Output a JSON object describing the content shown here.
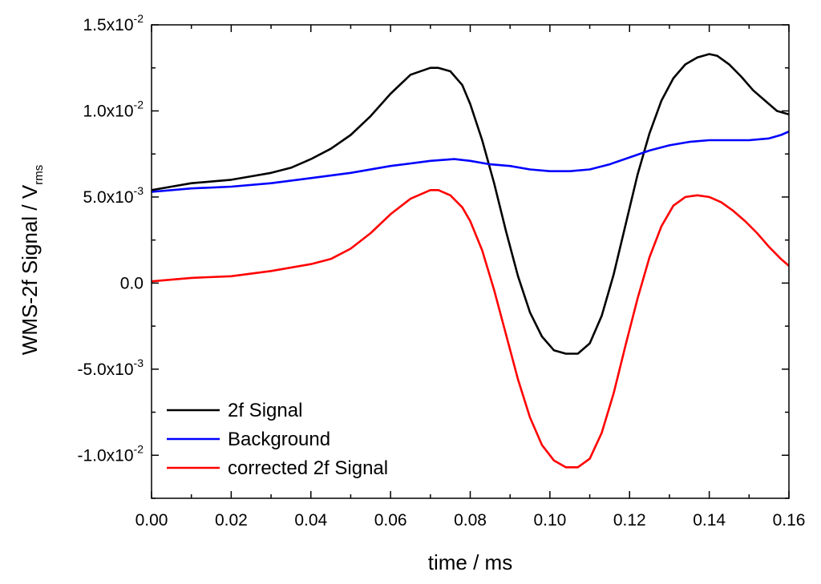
{
  "chart_data": {
    "type": "line",
    "title": "",
    "xlabel": "time / ms",
    "ylabel": {
      "main": "WMS-2f Signal / V",
      "subscript": "rms"
    },
    "xlim": [
      0.0,
      0.16
    ],
    "ylim": [
      -0.0125,
      0.015
    ],
    "grid": false,
    "legend_position": "bottom-left",
    "x_ticks": [
      {
        "value": 0.0,
        "label": "0.00"
      },
      {
        "value": 0.02,
        "label": "0.02"
      },
      {
        "value": 0.04,
        "label": "0.04"
      },
      {
        "value": 0.06,
        "label": "0.06"
      },
      {
        "value": 0.08,
        "label": "0.08"
      },
      {
        "value": 0.1,
        "label": "0.10"
      },
      {
        "value": 0.12,
        "label": "0.12"
      },
      {
        "value": 0.14,
        "label": "0.14"
      },
      {
        "value": 0.16,
        "label": "0.16"
      }
    ],
    "y_ticks": [
      {
        "value": 0.015,
        "mantissa": "1.5x10",
        "exponent": "-2"
      },
      {
        "value": 0.01,
        "mantissa": "1.0x10",
        "exponent": "-2"
      },
      {
        "value": 0.005,
        "mantissa": "5.0x10",
        "exponent": "-3"
      },
      {
        "value": 0.0,
        "mantissa": "0.0",
        "exponent": ""
      },
      {
        "value": -0.005,
        "mantissa": "-5.0x10",
        "exponent": "-3"
      },
      {
        "value": -0.01,
        "mantissa": "-1.0x10",
        "exponent": "-2"
      }
    ],
    "series": [
      {
        "name": "2f Signal",
        "color": "#000000",
        "points": [
          [
            0.0,
            0.0054
          ],
          [
            0.005,
            0.0056
          ],
          [
            0.01,
            0.0058
          ],
          [
            0.015,
            0.0059
          ],
          [
            0.02,
            0.006
          ],
          [
            0.025,
            0.0062
          ],
          [
            0.03,
            0.0064
          ],
          [
            0.035,
            0.0067
          ],
          [
            0.04,
            0.0072
          ],
          [
            0.045,
            0.0078
          ],
          [
            0.05,
            0.0086
          ],
          [
            0.055,
            0.0097
          ],
          [
            0.06,
            0.011
          ],
          [
            0.065,
            0.0121
          ],
          [
            0.07,
            0.0125
          ],
          [
            0.072,
            0.0125
          ],
          [
            0.075,
            0.0123
          ],
          [
            0.078,
            0.0115
          ],
          [
            0.08,
            0.0104
          ],
          [
            0.083,
            0.0083
          ],
          [
            0.086,
            0.0058
          ],
          [
            0.089,
            0.003
          ],
          [
            0.092,
            0.0004
          ],
          [
            0.095,
            -0.0017
          ],
          [
            0.098,
            -0.0031
          ],
          [
            0.101,
            -0.0039
          ],
          [
            0.104,
            -0.0041
          ],
          [
            0.107,
            -0.0041
          ],
          [
            0.11,
            -0.0035
          ],
          [
            0.113,
            -0.0019
          ],
          [
            0.116,
            0.0005
          ],
          [
            0.119,
            0.0034
          ],
          [
            0.122,
            0.0063
          ],
          [
            0.125,
            0.0087
          ],
          [
            0.128,
            0.0106
          ],
          [
            0.131,
            0.0119
          ],
          [
            0.134,
            0.0127
          ],
          [
            0.137,
            0.0131
          ],
          [
            0.14,
            0.0133
          ],
          [
            0.142,
            0.0132
          ],
          [
            0.145,
            0.0127
          ],
          [
            0.148,
            0.012
          ],
          [
            0.151,
            0.0112
          ],
          [
            0.154,
            0.0106
          ],
          [
            0.157,
            0.01
          ],
          [
            0.16,
            0.0098
          ]
        ]
      },
      {
        "name": "Background",
        "color": "#0000ff",
        "points": [
          [
            0.0,
            0.0053
          ],
          [
            0.01,
            0.0055
          ],
          [
            0.02,
            0.0056
          ],
          [
            0.03,
            0.0058
          ],
          [
            0.04,
            0.0061
          ],
          [
            0.05,
            0.0064
          ],
          [
            0.06,
            0.0068
          ],
          [
            0.07,
            0.0071
          ],
          [
            0.076,
            0.0072
          ],
          [
            0.08,
            0.0071
          ],
          [
            0.085,
            0.0069
          ],
          [
            0.09,
            0.0068
          ],
          [
            0.095,
            0.0066
          ],
          [
            0.1,
            0.0065
          ],
          [
            0.105,
            0.0065
          ],
          [
            0.11,
            0.0066
          ],
          [
            0.115,
            0.0069
          ],
          [
            0.12,
            0.0073
          ],
          [
            0.125,
            0.0077
          ],
          [
            0.13,
            0.008
          ],
          [
            0.135,
            0.0082
          ],
          [
            0.14,
            0.0083
          ],
          [
            0.145,
            0.0083
          ],
          [
            0.15,
            0.0083
          ],
          [
            0.155,
            0.0084
          ],
          [
            0.158,
            0.0086
          ],
          [
            0.16,
            0.0088
          ]
        ]
      },
      {
        "name": "corrected 2f Signal",
        "color": "#ff0000",
        "points": [
          [
            0.0,
            0.0001
          ],
          [
            0.01,
            0.0003
          ],
          [
            0.02,
            0.0004
          ],
          [
            0.03,
            0.0007
          ],
          [
            0.04,
            0.0011
          ],
          [
            0.045,
            0.0014
          ],
          [
            0.05,
            0.002
          ],
          [
            0.055,
            0.0029
          ],
          [
            0.06,
            0.004
          ],
          [
            0.065,
            0.0049
          ],
          [
            0.07,
            0.0054
          ],
          [
            0.072,
            0.0054
          ],
          [
            0.075,
            0.0051
          ],
          [
            0.078,
            0.0044
          ],
          [
            0.08,
            0.0036
          ],
          [
            0.083,
            0.0019
          ],
          [
            0.086,
            -0.0004
          ],
          [
            0.089,
            -0.003
          ],
          [
            0.092,
            -0.0056
          ],
          [
            0.095,
            -0.0078
          ],
          [
            0.098,
            -0.0094
          ],
          [
            0.101,
            -0.0103
          ],
          [
            0.104,
            -0.0107
          ],
          [
            0.107,
            -0.0107
          ],
          [
            0.11,
            -0.0102
          ],
          [
            0.113,
            -0.0087
          ],
          [
            0.116,
            -0.0064
          ],
          [
            0.119,
            -0.0036
          ],
          [
            0.122,
            -0.0009
          ],
          [
            0.125,
            0.0015
          ],
          [
            0.128,
            0.0033
          ],
          [
            0.131,
            0.0045
          ],
          [
            0.134,
            0.005
          ],
          [
            0.137,
            0.0051
          ],
          [
            0.14,
            0.005
          ],
          [
            0.143,
            0.0047
          ],
          [
            0.146,
            0.0042
          ],
          [
            0.149,
            0.0036
          ],
          [
            0.152,
            0.0029
          ],
          [
            0.155,
            0.0021
          ],
          [
            0.158,
            0.0014
          ],
          [
            0.16,
            0.001
          ]
        ]
      }
    ]
  }
}
